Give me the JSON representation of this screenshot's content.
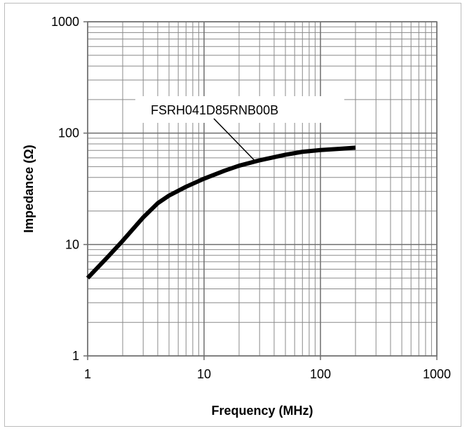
{
  "chart_data": {
    "type": "line",
    "title": "",
    "xlabel": "Frequency (MHz)",
    "ylabel": "Impedance (Ω)",
    "x_scale": "log",
    "y_scale": "log",
    "xlim": [
      1,
      1000
    ],
    "ylim": [
      1,
      1000
    ],
    "x_ticks": [
      1,
      10,
      100,
      1000
    ],
    "y_ticks": [
      1,
      10,
      100,
      1000
    ],
    "x_tick_labels": [
      "1",
      "10",
      "100",
      "1000"
    ],
    "y_tick_labels": [
      "1",
      "10",
      "100",
      "1000"
    ],
    "grid": true,
    "minor_grid": true,
    "legend": "none",
    "series": [
      {
        "name": "FSRH041D85RNB00B",
        "color": "#000000",
        "x": [
          1,
          1.5,
          2,
          3,
          4,
          5,
          7,
          10,
          15,
          20,
          30,
          50,
          70,
          100,
          150,
          200
        ],
        "y": [
          5,
          7.8,
          10.8,
          17.5,
          23.5,
          27.5,
          33,
          39,
          46,
          51,
          57,
          64,
          68,
          70.5,
          72.5,
          74
        ]
      }
    ],
    "annotations": [
      {
        "text": "FSRH041D85RNB00B",
        "series": "FSRH041D85RNB00B",
        "points_to": {
          "x": 28,
          "y": 55
        }
      }
    ]
  }
}
